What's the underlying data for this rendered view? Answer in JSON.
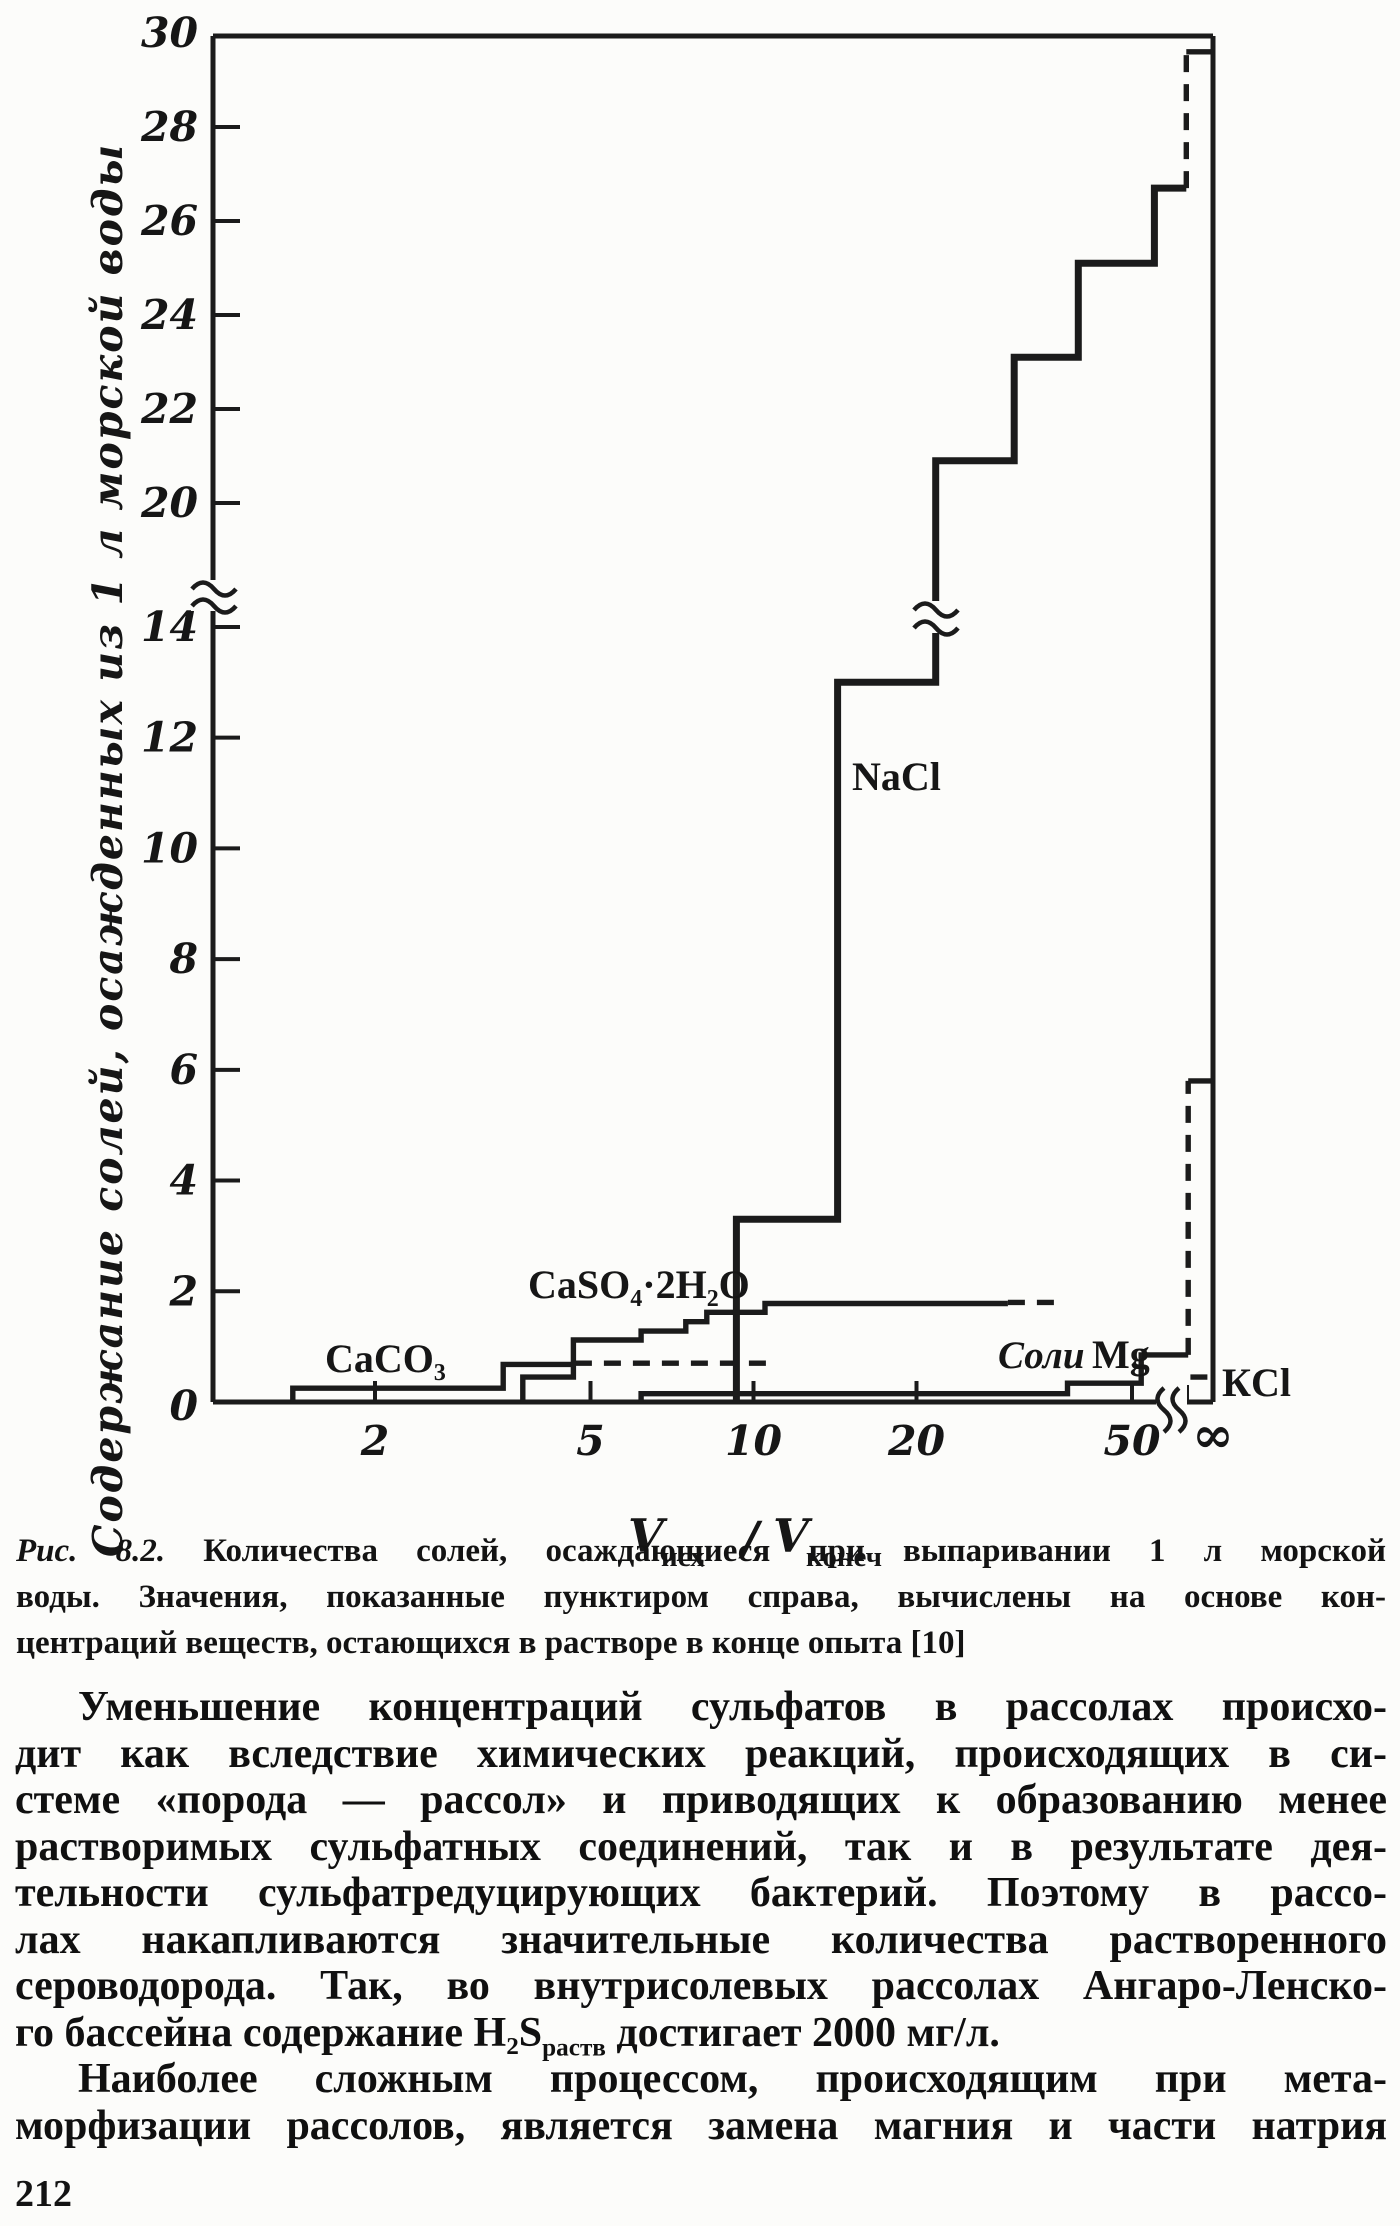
{
  "figure": {
    "y_axis_title": "Содержание солей, осажденных из 1 л морской воды",
    "x_axis_title": {
      "v1": "V",
      "sub1": "исх",
      "sep": "/",
      "v2": "V",
      "sub2": "конеч"
    },
    "labels": {
      "nacl": "NaCl",
      "caso4": "CaSO₄·2H₂O",
      "caco3": "CaCO₃",
      "mg_word": "Соли",
      "mg_formula": "Mg",
      "kcl": "КCl"
    }
  },
  "chart_data": {
    "type": "line",
    "subtype": "step-cumulative",
    "title": "Количества солей, осаждающиеся при выпаривании 1 л морской воды",
    "xlabel": "Vисх / Vконеч",
    "ylabel": "Содержание солей, осажденных из 1 л морской воды",
    "x_scale": "log",
    "x_range": [
      1,
      50
    ],
    "x_end": "∞",
    "x_axis_break_before_infinity": true,
    "ylim": [
      0,
      30
    ],
    "y_axis_break": [
      14,
      20
    ],
    "grid": false,
    "legend_position": "inline-labels",
    "x_ticks": [
      {
        "v": 2,
        "label": "2"
      },
      {
        "v": 5,
        "label": "5"
      },
      {
        "v": 10,
        "label": "10"
      },
      {
        "v": 20,
        "label": "20"
      },
      {
        "v": 50,
        "label": "50"
      },
      {
        "v": "inf",
        "label": "∞"
      }
    ],
    "y_ticks": [
      {
        "v": 0,
        "label": "0"
      },
      {
        "v": 2,
        "label": "2"
      },
      {
        "v": 4,
        "label": "4"
      },
      {
        "v": 6,
        "label": "6"
      },
      {
        "v": 8,
        "label": "8"
      },
      {
        "v": 10,
        "label": "10"
      },
      {
        "v": 12,
        "label": "12"
      },
      {
        "v": 14,
        "label": "14"
      },
      {
        "v": 20,
        "label": "20"
      },
      {
        "v": 22,
        "label": "22"
      },
      {
        "v": 24,
        "label": "24"
      },
      {
        "v": 26,
        "label": "26"
      },
      {
        "v": 28,
        "label": "28"
      },
      {
        "v": 30,
        "label": "30"
      }
    ],
    "series": [
      {
        "name": "CaCO₃",
        "style": "solid",
        "points": [
          [
            1.41,
            0
          ],
          [
            1.41,
            0.25
          ],
          [
            3.45,
            0.25
          ],
          [
            3.45,
            0.68
          ],
          [
            4.68,
            0.68
          ]
        ]
      },
      {
        "name": "CaCO₃ (пунктир — расчет)",
        "style": "dashed",
        "points": [
          [
            4.68,
            0.7
          ],
          [
            10.7,
            0.7
          ]
        ]
      },
      {
        "name": "CaSO₄·2H₂O",
        "style": "solid",
        "points": [
          [
            3.75,
            0
          ],
          [
            3.75,
            0.45
          ],
          [
            4.65,
            0.45
          ],
          [
            4.65,
            1.12
          ],
          [
            6.2,
            1.12
          ],
          [
            6.2,
            1.28
          ],
          [
            7.5,
            1.28
          ],
          [
            7.5,
            1.45
          ],
          [
            8.2,
            1.45
          ],
          [
            8.2,
            1.62
          ],
          [
            10.5,
            1.62
          ],
          [
            10.5,
            1.78
          ],
          [
            29.5,
            1.78
          ]
        ]
      },
      {
        "name": "CaSO₄·2H₂O (пунктир — расчет)",
        "style": "dashed",
        "points": [
          [
            29.5,
            1.8
          ],
          [
            36.7,
            1.8
          ]
        ]
      },
      {
        "name": "NaCl",
        "style": "solid",
        "thick": true,
        "points": [
          [
            9.3,
            0
          ],
          [
            9.3,
            3.3
          ],
          [
            14.3,
            3.3
          ],
          [
            14.3,
            13
          ],
          [
            21.7,
            13
          ],
          [
            21.7,
            20.9
          ],
          [
            30.3,
            20.9
          ],
          [
            30.3,
            23.1
          ],
          [
            39.8,
            23.1
          ],
          [
            39.8,
            25.1
          ],
          [
            55,
            25.1
          ],
          [
            55,
            26.7
          ],
          [
            63,
            26.7
          ]
        ]
      },
      {
        "name": "NaCl (пунктир — расчет)",
        "style": "dashed",
        "points": [
          [
            63,
            26.7
          ],
          [
            63,
            29.6
          ]
        ]
      },
      {
        "name": "NaCl (расчетное значение при ∞)",
        "style": "solid",
        "points": [
          [
            63,
            29.6
          ],
          [
            "inf",
            29.6
          ]
        ]
      },
      {
        "name": "Соли Mg",
        "style": "solid",
        "points": [
          [
            6.2,
            0
          ],
          [
            6.2,
            0.15
          ],
          [
            38,
            0.15
          ],
          [
            38,
            0.34
          ],
          [
            52,
            0.34
          ],
          [
            52,
            0.85
          ],
          [
            63.5,
            0.85
          ]
        ]
      },
      {
        "name": "Соли Mg (пунктир — расчет)",
        "style": "dashed",
        "points": [
          [
            63.5,
            0.85
          ],
          [
            63.5,
            5.8
          ]
        ]
      },
      {
        "name": "Соли Mg (расчетное значение при ∞)",
        "style": "solid",
        "points": [
          [
            63.5,
            5.8
          ],
          [
            "inf",
            5.8
          ]
        ]
      },
      {
        "name": "КCl (пунктир — расчет)",
        "style": "dashed",
        "points": [
          [
            63,
            0
          ],
          [
            63,
            0.45
          ],
          [
            "inf",
            0.45
          ]
        ]
      }
    ]
  },
  "caption": {
    "line1": "{i:Рис. 8.2.} Количества солей, осаждающиеся при выпаривании 1 л морской",
    "line2": "воды. Значения, показанные пунктиром справа, вычислены на основе кон-",
    "line3": "центраций веществ, остающихся в растворе в конце опыта [10]"
  },
  "body": {
    "p1": {
      "l1": "Уменьшение концентраций сульфатов в рассолах происхо-",
      "l2": "дит как вследствие химических реакций, происходящих в си-",
      "l3": "стеме «порода — рассол» и приводящих к образованию менее",
      "l4": "растворимых сульфатных соединений, так и в результате дея-",
      "l5": "тельности сульфатредуцирующих бактерий. Поэтому в рассо-",
      "l6": "лах накапливаются значительные количества растворенного",
      "l7": "сероводорода. Так, во внутрисолевых рассолах Ангаро-Ленско-",
      "l8": "го бассейна содержание H₂S{sub:раств} достигает 2000 мг/л."
    },
    "p2": {
      "l1": "Наиболее сложным процессом, происходящим при мета-",
      "l2": "морфизации рассолов, является замена магния и части натрия"
    }
  },
  "page_number": "212"
}
